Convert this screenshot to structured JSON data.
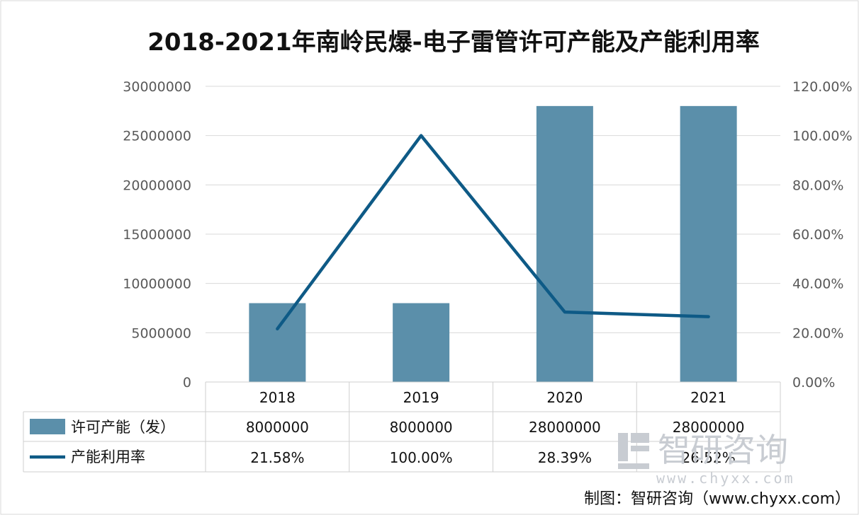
{
  "chart_data": {
    "type": "bar",
    "title": "2018-2021年南岭民爆-电子雷管许可产能及产能利用率",
    "categories": [
      "2018",
      "2019",
      "2020",
      "2021"
    ],
    "series": [
      {
        "name": "许可产能（发）",
        "type": "bar",
        "axis": "left",
        "color": "#5b8faa",
        "values": [
          8000000,
          8000000,
          28000000,
          28000000
        ],
        "labels": [
          "8000000",
          "8000000",
          "28000000",
          "28000000"
        ]
      },
      {
        "name": "产能利用率",
        "type": "line",
        "axis": "right",
        "color": "#0e5a86",
        "values": [
          21.58,
          100.0,
          28.39,
          26.52
        ],
        "labels": [
          "21.58%",
          "100.00%",
          "28.39%",
          "26.52%"
        ]
      }
    ],
    "left_axis": {
      "ylim": [
        0,
        30000000
      ],
      "ticks": [
        "0",
        "5000000",
        "10000000",
        "15000000",
        "20000000",
        "25000000",
        "30000000"
      ]
    },
    "right_axis": {
      "ylim": [
        0,
        120
      ],
      "unit": "%",
      "ticks": [
        "0.00%",
        "20.00%",
        "40.00%",
        "60.00%",
        "80.00%",
        "100.00%",
        "120.00%"
      ]
    },
    "grid": true,
    "legend": "data-table-below"
  },
  "watermark": {
    "text": "智研咨询",
    "url": "www.chyxx.com"
  },
  "source": "制图：智研咨询（www.chyxx.com）"
}
